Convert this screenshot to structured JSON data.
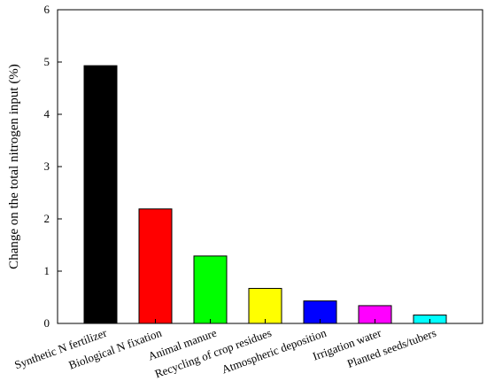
{
  "chart_data": {
    "type": "bar",
    "title": "",
    "xlabel": "",
    "ylabel": "Change on the total nitrogen input (%)",
    "ylim": [
      0,
      6
    ],
    "yticks": [
      0,
      1,
      2,
      3,
      4,
      5,
      6
    ],
    "grid": false,
    "categories": [
      "Synthetic N fertilizer",
      "Biological N fixation",
      "Animal manure",
      "Recycling of crop residues",
      "Atmospheric deposition",
      "Irrigation water",
      "Planted seeds/tubers"
    ],
    "values": [
      4.93,
      2.19,
      1.29,
      0.67,
      0.43,
      0.34,
      0.16
    ],
    "colors": [
      "#000000",
      "#ff0000",
      "#00ff00",
      "#ffff00",
      "#0000ff",
      "#ff00ff",
      "#00ffff"
    ]
  }
}
